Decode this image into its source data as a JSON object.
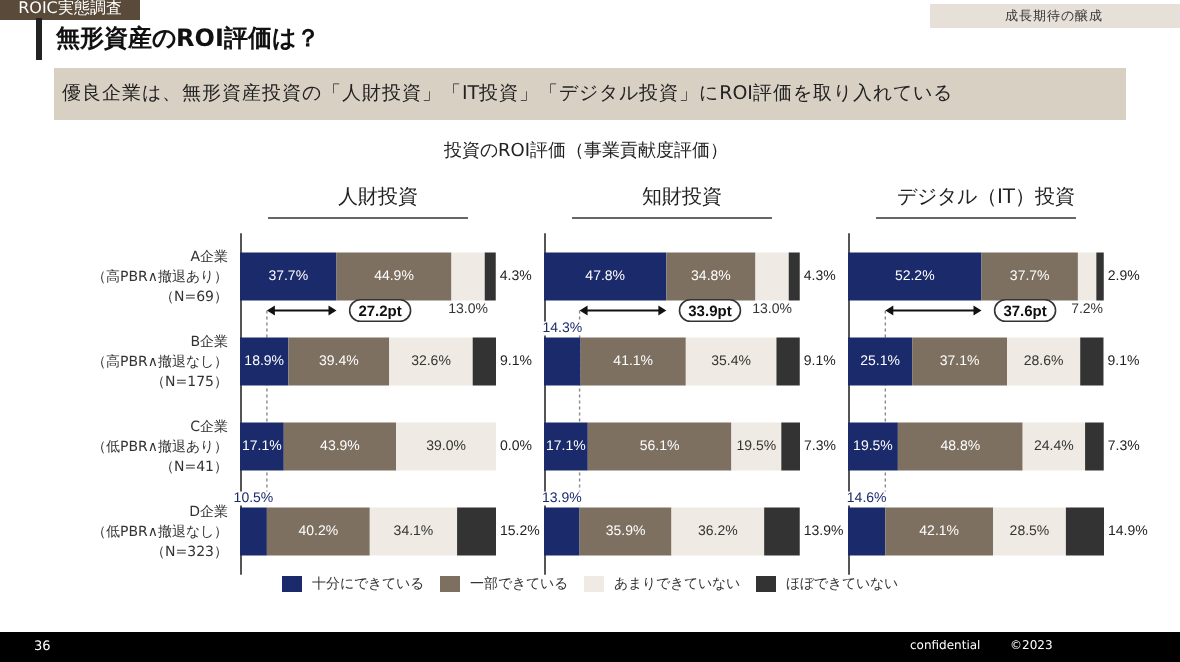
{
  "chart_data": [
    {
      "type": "bar",
      "orientation": "horizontal",
      "stacked": true,
      "title": "人財投資",
      "tick_labels": "y",
      "legend": "bottom",
      "categories": [
        "A企業（高PBR∧撤退あり）（N=69）",
        "B企業（高PBR∧撤退なし）（N=175）",
        "C企業（低PBR∧撤退あり）（N=41）",
        "D企業（低PBR∧撤退なし）（N=323）"
      ],
      "series": [
        {
          "name": "十分にできている",
          "color": "#1b2a6b",
          "values": [
            37.7,
            18.9,
            17.1,
            10.5
          ],
          "value_labels": [
            "37.7%",
            "18.9%",
            "17.1%",
            "10.5%"
          ]
        },
        {
          "name": "一部できている",
          "color": "#7d7060",
          "values": [
            44.9,
            39.4,
            43.9,
            40.2
          ],
          "value_labels": [
            "44.9%",
            "39.4%",
            "43.9%",
            "40.2%"
          ]
        },
        {
          "name": "あまりできていない",
          "color": "#efebe4",
          "values": [
            13.0,
            32.6,
            39.0,
            34.1
          ],
          "value_labels": [
            "13.0%",
            "32.6%",
            "39.0%",
            "34.1%"
          ]
        },
        {
          "name": "ほぼできていない",
          "color": "#333333",
          "values": [
            4.3,
            9.1,
            0.0,
            15.2
          ],
          "value_labels": [
            "4.3%",
            "9.1%",
            "0.0%",
            "15.2%"
          ]
        }
      ],
      "annotations": [
        "27.2pt",
        "ROIC実態調査",
        "無形資産のROI評価は？",
        "成長期待の醸成",
        "優良企業は、無形資産投資の「人財投資」「IT投資」「デジタル投資」にROI評価を取り入れている",
        "投資のROI評価（事業貢献度評価）",
        "36",
        "confidential",
        "©2023"
      ]
    },
    {
      "type": "bar",
      "orientation": "horizontal",
      "stacked": true,
      "title": "知財投資",
      "tick_labels": false,
      "categories": [
        null,
        null,
        null,
        null
      ],
      "series": [
        {
          "color": "#1b2a6b",
          "values": [
            47.8,
            14.3,
            17.1,
            13.9
          ],
          "value_labels": [
            "47.8%",
            "14.3%",
            "17.1%",
            "13.9%"
          ]
        },
        {
          "color": "#7d7060",
          "values": [
            34.8,
            41.1,
            56.1,
            35.9
          ],
          "value_labels": [
            "34.8%",
            "41.1%",
            "56.1%",
            "35.9%"
          ]
        },
        {
          "color": "#efebe4",
          "values": [
            13.0,
            35.4,
            19.5,
            36.2
          ],
          "value_labels": [
            "13.0%",
            "35.4%",
            "19.5%",
            "36.2%"
          ]
        },
        {
          "color": "#333333",
          "values": [
            4.3,
            9.1,
            7.3,
            13.9
          ],
          "value_labels": [
            "4.3%",
            "9.1%",
            "7.3%",
            "13.9%"
          ]
        }
      ],
      "annotations": [
        "33.9pt"
      ]
    },
    {
      "type": "bar",
      "orientation": "horizontal",
      "stacked": true,
      "title": "デジタル（IT）投資",
      "tick_labels": false,
      "categories": [
        null,
        null,
        null,
        null
      ],
      "series": [
        {
          "color": "#1b2a6b",
          "values": [
            52.2,
            25.1,
            19.5,
            14.6
          ],
          "value_labels": [
            "52.2%",
            "25.1%",
            "19.5%",
            "14.6%"
          ]
        },
        {
          "color": "#7d7060",
          "values": [
            37.7,
            37.1,
            48.8,
            42.1
          ],
          "value_labels": [
            "37.7%",
            "37.1%",
            "48.8%",
            "42.1%"
          ]
        },
        {
          "color": "#efebe4",
          "values": [
            7.2,
            28.6,
            24.4,
            28.5
          ],
          "value_labels": [
            "7.2%",
            "28.6%",
            "24.4%",
            "28.5%"
          ]
        },
        {
          "color": "#333333",
          "values": [
            2.9,
            9.1,
            7.3,
            14.9
          ],
          "value_labels": [
            "2.9%",
            "9.1%",
            "7.3%",
            "14.9%"
          ]
        }
      ],
      "annotations": [
        "37.6pt"
      ]
    }
  ]
}
